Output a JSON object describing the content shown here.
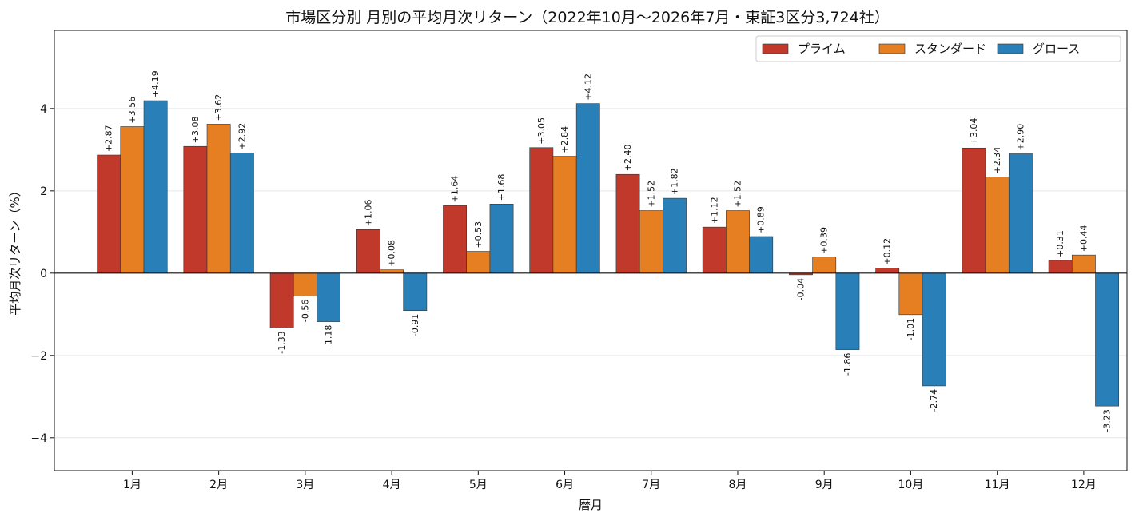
{
  "chart_data": {
    "type": "bar",
    "title": "市場区分別 月別の平均月次リターン（2022年10月〜2026年7月・東証3区分3,724社）",
    "xlabel": "暦月",
    "ylabel": "平均月次リターン（%）",
    "categories": [
      "1月",
      "2月",
      "3月",
      "4月",
      "5月",
      "6月",
      "7月",
      "8月",
      "9月",
      "10月",
      "11月",
      "12月"
    ],
    "ylim": [
      -4.8,
      5.9
    ],
    "yticks": [
      -4,
      -2,
      0,
      2,
      4
    ],
    "ytick_labels": [
      "−4",
      "−2",
      "0",
      "2",
      "4"
    ],
    "grid": true,
    "legend_position": "top-right",
    "series": [
      {
        "name": "プライム",
        "color": "#c0392b",
        "values": [
          2.87,
          3.08,
          -1.33,
          1.06,
          1.64,
          3.05,
          2.4,
          1.12,
          -0.04,
          0.12,
          3.04,
          0.31
        ],
        "labels": [
          "+2.87",
          "+3.08",
          "-1.33",
          "+1.06",
          "+1.64",
          "+3.05",
          "+2.40",
          "+1.12",
          "-0.04",
          "+0.12",
          "+3.04",
          "+0.31"
        ]
      },
      {
        "name": "スタンダード",
        "color": "#e67e22",
        "values": [
          3.56,
          3.62,
          -0.56,
          0.08,
          0.53,
          2.84,
          1.52,
          1.52,
          0.39,
          -1.01,
          2.34,
          0.44
        ],
        "labels": [
          "+3.56",
          "+3.62",
          "-0.56",
          "+0.08",
          "+0.53",
          "+2.84",
          "+1.52",
          "+1.52",
          "+0.39",
          "-1.01",
          "+2.34",
          "+0.44"
        ]
      },
      {
        "name": "グロース",
        "color": "#2980b9",
        "values": [
          4.19,
          2.92,
          -1.18,
          -0.91,
          1.68,
          4.12,
          1.82,
          0.89,
          -1.86,
          -2.74,
          2.9,
          -3.23
        ],
        "labels": [
          "+4.19",
          "+2.92",
          "-1.18",
          "-0.91",
          "+1.68",
          "+4.12",
          "+1.82",
          "+0.89",
          "-1.86",
          "-2.74",
          "+2.90",
          "-3.23"
        ]
      }
    ]
  }
}
